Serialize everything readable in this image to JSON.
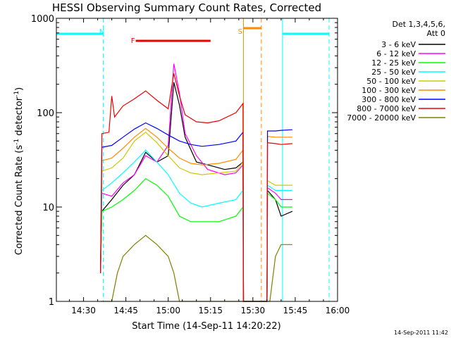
{
  "chart_data": {
    "type": "line",
    "title": "HESSI Observing Summary Count Rates, Corrected",
    "xlabel": "Start Time (14-Sep-11 14:20:22)",
    "ylabel_main": "Corrected Count Rate (s",
    "ylabel_sup1": "-1",
    "ylabel_mid": " detector",
    "ylabel_sup2": "-1",
    "ylabel_end": ")",
    "yscale": "log",
    "xlim": [
      "14:20:22",
      "16:00:00"
    ],
    "ylim": [
      1,
      1000
    ],
    "grid": false,
    "legend_position": "top-right",
    "timestamp": "14-Sep-2011 11:42",
    "legend_header": [
      "Det 1,3,4,5,6,",
      "Att 0"
    ],
    "x_ticks": [
      {
        "t": "14:30",
        "label": "14:30"
      },
      {
        "t": "14:45",
        "label": "14:45"
      },
      {
        "t": "15:00",
        "label": "15:00"
      },
      {
        "t": "15:15",
        "label": "15:15"
      },
      {
        "t": "15:30",
        "label": "15:30"
      },
      {
        "t": "15:45",
        "label": "15:45"
      },
      {
        "t": "16:00",
        "label": "16:00"
      }
    ],
    "y_ticks": [
      {
        "v": 1,
        "label": "1"
      },
      {
        "v": 10,
        "label": "10"
      },
      {
        "v": 100,
        "label": "100"
      },
      {
        "v": 1000,
        "label": "1000"
      }
    ],
    "series": [
      {
        "name": "3 - 6 keV",
        "color": "#000000",
        "points": [
          [
            "14:36:00",
            2
          ],
          [
            "14:36:30",
            9
          ],
          [
            "14:40:00",
            12
          ],
          [
            "14:44:00",
            17
          ],
          [
            "14:48:00",
            22
          ],
          [
            "14:52:00",
            38
          ],
          [
            "14:56:00",
            30
          ],
          [
            "15:00:00",
            35
          ],
          [
            "15:02:00",
            210
          ],
          [
            "15:04:00",
            120
          ],
          [
            "15:06:00",
            55
          ],
          [
            "15:10:00",
            30
          ],
          [
            "15:14:00",
            28
          ],
          [
            "15:20:00",
            25
          ],
          [
            "15:24:00",
            26
          ],
          [
            "15:26:30",
            30
          ],
          [
            "15:26:40",
            1
          ],
          [
            "15:35:00",
            1
          ],
          [
            "15:35:10",
            15
          ],
          [
            "15:38:00",
            12
          ],
          [
            "15:40:00",
            8
          ],
          [
            "15:44:00",
            9
          ]
        ]
      },
      {
        "name": "6 - 12 keV",
        "color": "#ff00ff",
        "points": [
          [
            "14:36:00",
            2
          ],
          [
            "14:36:30",
            14
          ],
          [
            "14:40:00",
            13
          ],
          [
            "14:44:00",
            18
          ],
          [
            "14:48:00",
            22
          ],
          [
            "14:52:00",
            35
          ],
          [
            "14:56:00",
            30
          ],
          [
            "15:00:00",
            45
          ],
          [
            "15:02:00",
            330
          ],
          [
            "15:04:00",
            160
          ],
          [
            "15:06:00",
            60
          ],
          [
            "15:10:00",
            35
          ],
          [
            "15:14:00",
            25
          ],
          [
            "15:20:00",
            22
          ],
          [
            "15:24:00",
            23
          ],
          [
            "15:26:30",
            28
          ],
          [
            "15:26:40",
            1
          ],
          [
            "15:35:00",
            1
          ],
          [
            "15:35:10",
            16
          ],
          [
            "15:38:00",
            14
          ],
          [
            "15:40:00",
            12
          ],
          [
            "15:44:00",
            12
          ]
        ]
      },
      {
        "name": "12 - 25 keV",
        "color": "#00ff00",
        "points": [
          [
            "14:36:00",
            2
          ],
          [
            "14:36:30",
            9
          ],
          [
            "14:40:00",
            10
          ],
          [
            "14:44:00",
            12
          ],
          [
            "14:48:00",
            15
          ],
          [
            "14:52:00",
            20
          ],
          [
            "14:56:00",
            17
          ],
          [
            "15:00:00",
            13
          ],
          [
            "15:04:00",
            8
          ],
          [
            "15:08:00",
            7
          ],
          [
            "15:12:00",
            7
          ],
          [
            "15:18:00",
            7
          ],
          [
            "15:24:00",
            8
          ],
          [
            "15:26:30",
            10
          ],
          [
            "15:26:40",
            1
          ],
          [
            "15:35:00",
            1
          ],
          [
            "15:35:10",
            14
          ],
          [
            "15:38:00",
            12
          ],
          [
            "15:40:00",
            10
          ],
          [
            "15:44:00",
            10
          ]
        ]
      },
      {
        "name": "25 - 50 keV",
        "color": "#00ffff",
        "points": [
          [
            "14:36:00",
            2
          ],
          [
            "14:36:30",
            15
          ],
          [
            "14:40:00",
            18
          ],
          [
            "14:44:00",
            23
          ],
          [
            "14:48:00",
            30
          ],
          [
            "14:52:00",
            40
          ],
          [
            "14:56:00",
            30
          ],
          [
            "15:00:00",
            22
          ],
          [
            "15:04:00",
            14
          ],
          [
            "15:08:00",
            11
          ],
          [
            "15:12:00",
            10
          ],
          [
            "15:18:00",
            11
          ],
          [
            "15:24:00",
            12
          ],
          [
            "15:26:30",
            15
          ],
          [
            "15:26:40",
            1
          ],
          [
            "15:35:00",
            1
          ],
          [
            "15:35:10",
            17
          ],
          [
            "15:38:00",
            15
          ],
          [
            "15:40:00",
            15
          ],
          [
            "15:44:00",
            15
          ]
        ]
      },
      {
        "name": "50 - 100 keV",
        "color": "#d2c800",
        "points": [
          [
            "14:36:00",
            2
          ],
          [
            "14:36:30",
            24
          ],
          [
            "14:40:00",
            26
          ],
          [
            "14:44:00",
            33
          ],
          [
            "14:48:00",
            50
          ],
          [
            "14:52:00",
            62
          ],
          [
            "14:56:00",
            48
          ],
          [
            "15:00:00",
            35
          ],
          [
            "15:04:00",
            26
          ],
          [
            "15:08:00",
            23
          ],
          [
            "15:12:00",
            22
          ],
          [
            "15:18:00",
            23
          ],
          [
            "15:24:00",
            24
          ],
          [
            "15:26:30",
            30
          ],
          [
            "15:26:40",
            1
          ],
          [
            "15:35:00",
            1
          ],
          [
            "15:35:10",
            19
          ],
          [
            "15:38:00",
            17
          ],
          [
            "15:40:00",
            17
          ],
          [
            "15:44:00",
            17
          ]
        ]
      },
      {
        "name": "100 - 300 keV",
        "color": "#ff8c00",
        "points": [
          [
            "14:36:00",
            2
          ],
          [
            "14:36:30",
            31
          ],
          [
            "14:40:00",
            33
          ],
          [
            "14:44:00",
            42
          ],
          [
            "14:48:00",
            55
          ],
          [
            "14:52:00",
            68
          ],
          [
            "14:56:00",
            55
          ],
          [
            "15:00:00",
            42
          ],
          [
            "15:04:00",
            33
          ],
          [
            "15:08:00",
            29
          ],
          [
            "15:12:00",
            28
          ],
          [
            "15:18:00",
            29
          ],
          [
            "15:24:00",
            32
          ],
          [
            "15:26:30",
            40
          ],
          [
            "15:26:40",
            1
          ],
          [
            "15:35:00",
            1
          ],
          [
            "15:35:10",
            56
          ],
          [
            "15:38:00",
            55
          ],
          [
            "15:40:00",
            55
          ],
          [
            "15:44:00",
            55
          ]
        ]
      },
      {
        "name": "300 - 800 keV",
        "color": "#0000ff",
        "points": [
          [
            "14:36:00",
            2
          ],
          [
            "14:36:30",
            43
          ],
          [
            "14:40:00",
            45
          ],
          [
            "14:44:00",
            55
          ],
          [
            "14:48:00",
            67
          ],
          [
            "14:52:00",
            78
          ],
          [
            "14:56:00",
            68
          ],
          [
            "15:00:00",
            58
          ],
          [
            "15:04:00",
            50
          ],
          [
            "15:08:00",
            46
          ],
          [
            "15:12:00",
            44
          ],
          [
            "15:18:00",
            46
          ],
          [
            "15:24:00",
            50
          ],
          [
            "15:26:30",
            62
          ],
          [
            "15:26:40",
            1
          ],
          [
            "15:35:00",
            1
          ],
          [
            "15:35:10",
            64
          ],
          [
            "15:38:00",
            64
          ],
          [
            "15:40:00",
            65
          ],
          [
            "15:44:00",
            66
          ]
        ]
      },
      {
        "name": "800 - 7000 keV",
        "color": "#ee0000",
        "points": [
          [
            "14:36:00",
            2
          ],
          [
            "14:36:30",
            60
          ],
          [
            "14:39:00",
            62
          ],
          [
            "14:40:00",
            150
          ],
          [
            "14:41:00",
            90
          ],
          [
            "14:44:00",
            118
          ],
          [
            "14:48:00",
            140
          ],
          [
            "14:52:00",
            170
          ],
          [
            "14:56:00",
            135
          ],
          [
            "15:00:00",
            110
          ],
          [
            "15:02:00",
            260
          ],
          [
            "15:04:00",
            150
          ],
          [
            "15:06:00",
            95
          ],
          [
            "15:10:00",
            80
          ],
          [
            "15:14:00",
            78
          ],
          [
            "15:18:00",
            82
          ],
          [
            "15:24:00",
            100
          ],
          [
            "15:26:30",
            125
          ],
          [
            "15:26:40",
            1
          ],
          [
            "15:35:00",
            1
          ],
          [
            "15:35:10",
            48
          ],
          [
            "15:38:00",
            47
          ],
          [
            "15:40:00",
            46
          ],
          [
            "15:44:00",
            47
          ]
        ]
      },
      {
        "name": "7000 - 20000 keV",
        "color": "#808000",
        "points": [
          [
            "14:36:00",
            1
          ],
          [
            "14:40:00",
            1
          ],
          [
            "14:42:00",
            2
          ],
          [
            "14:44:00",
            3
          ],
          [
            "14:48:00",
            4
          ],
          [
            "14:52:00",
            5
          ],
          [
            "14:56:00",
            4
          ],
          [
            "15:00:00",
            3
          ],
          [
            "15:02:00",
            2
          ],
          [
            "15:04:00",
            1
          ],
          [
            "15:36:00",
            1
          ],
          [
            "15:38:00",
            3
          ],
          [
            "15:40:00",
            4
          ],
          [
            "15:44:00",
            4
          ]
        ]
      }
    ],
    "attenuator_bars": [
      {
        "label": "F",
        "color": "#ee0000",
        "start": "14:48:30",
        "end": "15:15:00",
        "label_at": "14:47:30"
      }
    ],
    "event_labels": [
      {
        "label": "N",
        "color": "#00ffff",
        "t": "14:36:30"
      },
      {
        "label": "S",
        "color": "#ff8c00",
        "t": "15:25:30"
      }
    ],
    "night_intervals": [
      {
        "color": "#00ffff",
        "start": "14:20:22",
        "end": "14:37:00"
      },
      {
        "color": "#00ffff",
        "start": "15:40:30",
        "end": "15:57:00"
      }
    ],
    "saa_intervals": [
      {
        "color": "#ff8c00",
        "start": "15:26:40",
        "end": "15:33:00"
      }
    ],
    "vertical_lines": [
      {
        "color": "#00ffff",
        "t": "14:20:22",
        "dashed": false
      },
      {
        "color": "#00ffff",
        "t": "14:37:00",
        "dashed": true
      },
      {
        "color": "#ff8c00",
        "t": "15:26:40",
        "dashed": false
      },
      {
        "color": "#ff8c00",
        "t": "15:33:00",
        "dashed": true
      },
      {
        "color": "#00ffff",
        "t": "15:40:30",
        "dashed": false
      },
      {
        "color": "#00ffff",
        "t": "15:57:00",
        "dashed": true
      }
    ]
  }
}
